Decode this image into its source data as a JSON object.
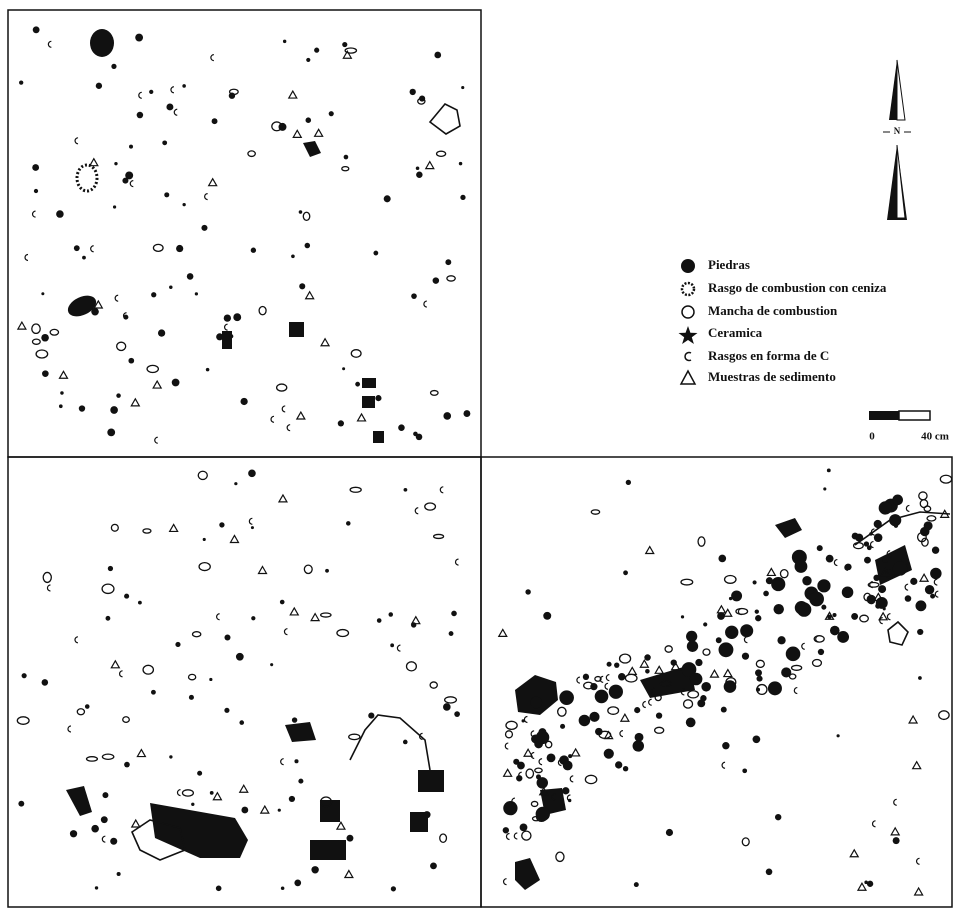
{
  "north_label": "N",
  "legend": [
    {
      "label": "Piedras"
    },
    {
      "label": "Rasgo de combustion con ceniza"
    },
    {
      "label": "Mancha de combustion"
    },
    {
      "label": "Ceramica"
    },
    {
      "label": "Rasgos en forma de C"
    },
    {
      "label": "Muestras de sedimento"
    }
  ],
  "scale": {
    "start": "0",
    "end": "40 cm"
  }
}
